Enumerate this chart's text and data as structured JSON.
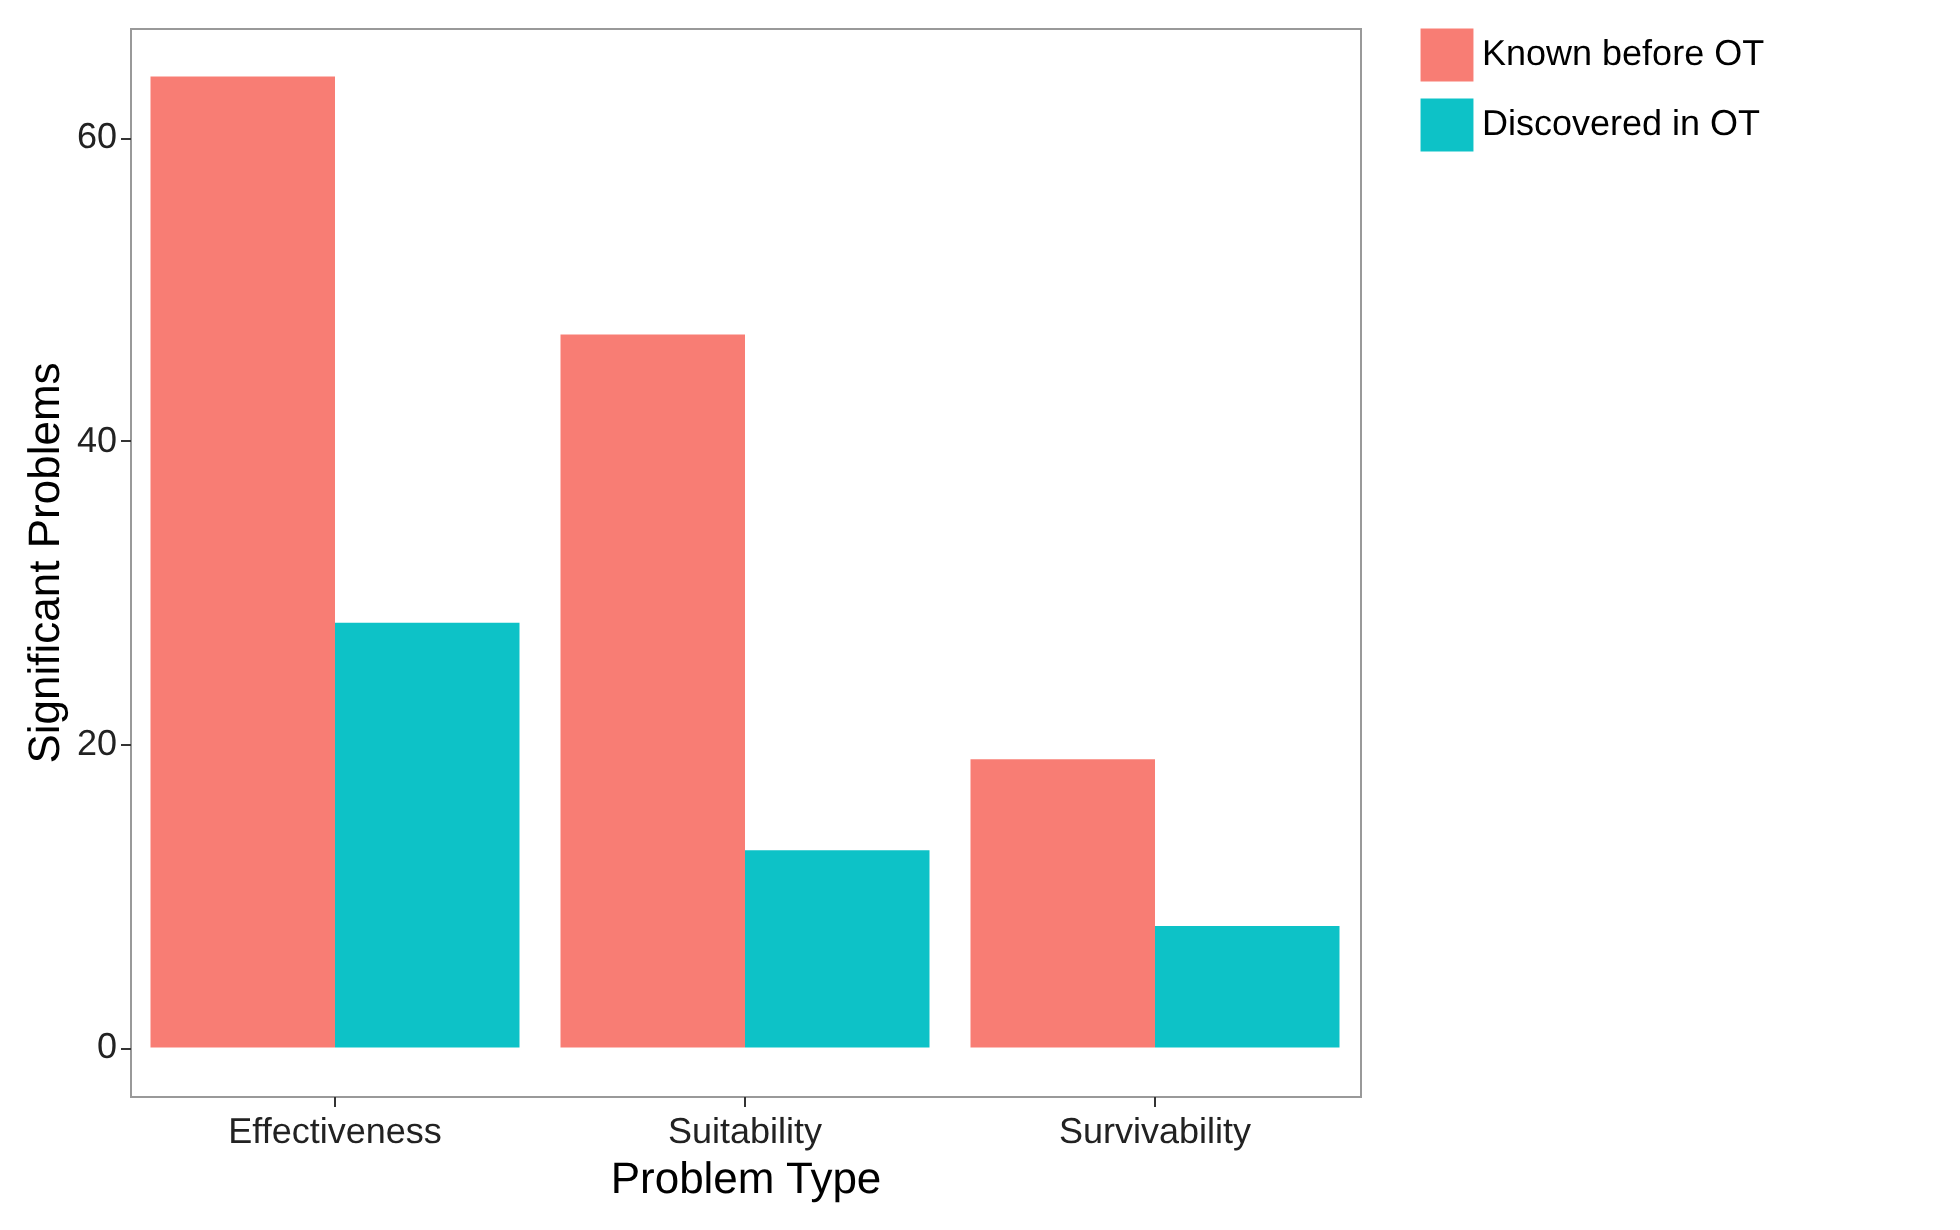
{
  "chart_data": {
    "type": "bar",
    "xlabel": "Problem Type",
    "ylabel": "Significant Problems",
    "categories": [
      "Effectiveness",
      "Suitability",
      "Survivability"
    ],
    "series": [
      {
        "name": "Known before OT",
        "color": "#f8766d",
        "values": [
          64,
          47,
          19
        ]
      },
      {
        "name": "Discovered in OT",
        "color": "#00bfc4",
        "values": [
          28,
          13,
          8
        ]
      }
    ],
    "ylim": [
      -3.2,
      67.2
    ],
    "yticks": [
      0,
      20,
      40,
      60
    ],
    "grid": false,
    "legend": "right"
  }
}
